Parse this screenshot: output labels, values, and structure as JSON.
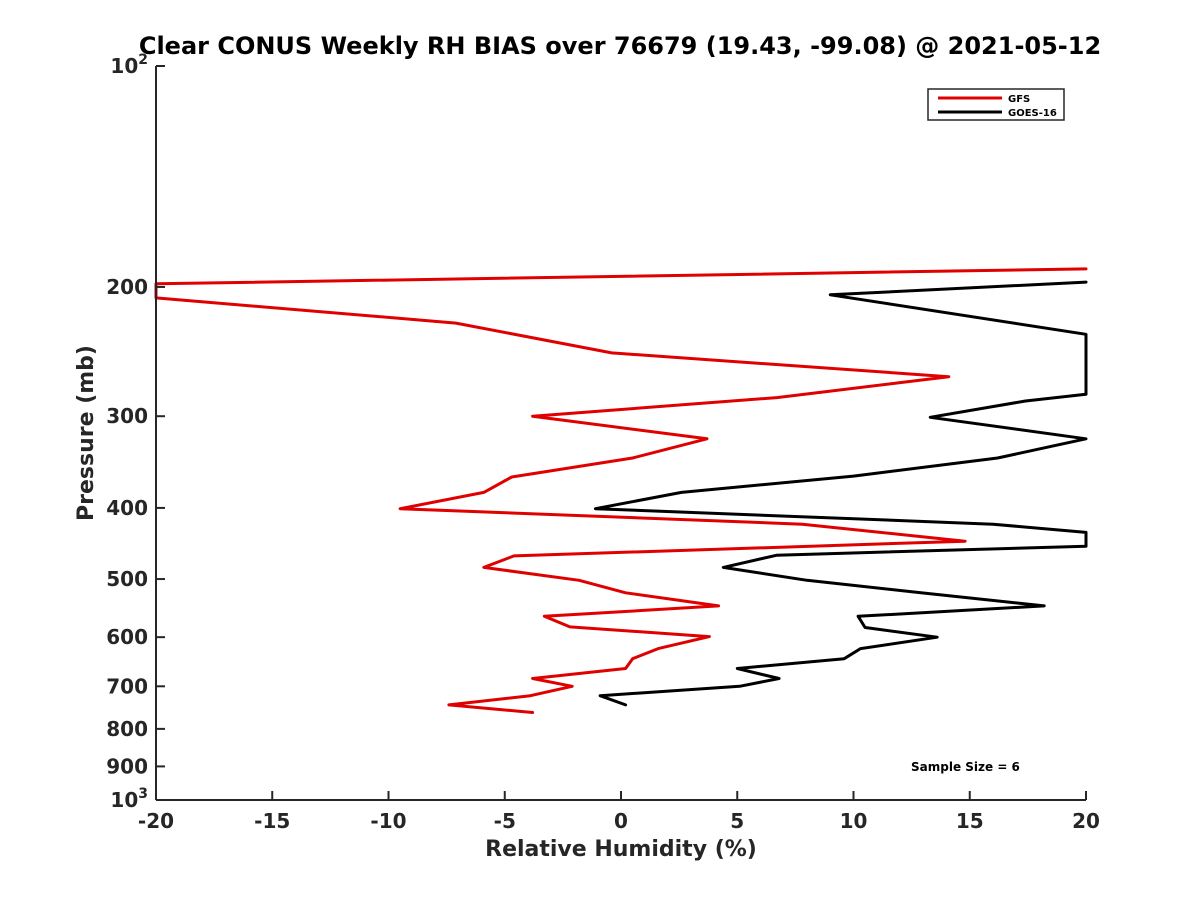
{
  "chart_data": {
    "type": "line",
    "title": "Clear CONUS Weekly RH BIAS over 76679 (19.43, -99.08) @ 2021-05-12",
    "xlabel": "Relative Humidity (%)",
    "ylabel": "Pressure (mb)",
    "xlim": [
      -20,
      20
    ],
    "ylim": [
      100,
      1000
    ],
    "y_scale": "log",
    "y_reversed": true,
    "grid": false,
    "legend_position": "top-right",
    "x_ticks": [
      "-20",
      "-15",
      "-10",
      "-5",
      "0",
      "5",
      "10",
      "15",
      "20"
    ],
    "y_ticks": [
      {
        "value": 100,
        "base": "10",
        "exp": "2"
      },
      {
        "value": 200,
        "label": "200"
      },
      {
        "value": 300,
        "label": "300"
      },
      {
        "value": 400,
        "label": "400"
      },
      {
        "value": 500,
        "label": "500"
      },
      {
        "value": 600,
        "label": "600"
      },
      {
        "value": 700,
        "label": "700"
      },
      {
        "value": 800,
        "label": "800"
      },
      {
        "value": 900,
        "label": "900"
      },
      {
        "value": 1000,
        "base": "10",
        "exp": "3"
      }
    ],
    "annotation": "Sample Size = 6",
    "series": [
      {
        "name": "GFS",
        "color": "#e00000",
        "points": [
          [
            20,
            189
          ],
          [
            -20,
            198
          ],
          [
            -20,
            207
          ],
          [
            -7.1,
            224
          ],
          [
            -0.4,
            246
          ],
          [
            14.1,
            265
          ],
          [
            6.7,
            283
          ],
          [
            -3.8,
            300
          ],
          [
            3.7,
            322
          ],
          [
            0.5,
            342
          ],
          [
            -4.7,
            363
          ],
          [
            -5.9,
            381
          ],
          [
            -9.5,
            401
          ],
          [
            7.8,
            421
          ],
          [
            14.8,
            444
          ],
          [
            -4.6,
            465
          ],
          [
            -5.9,
            482
          ],
          [
            -1.8,
            502
          ],
          [
            0.2,
            522
          ],
          [
            4.2,
            544
          ],
          [
            -3.3,
            562
          ],
          [
            -2.2,
            581
          ],
          [
            3.8,
            599
          ],
          [
            1.6,
            622
          ],
          [
            0.5,
            642
          ],
          [
            0.2,
            662
          ],
          [
            -3.8,
            683
          ],
          [
            -2.1,
            700
          ],
          [
            -3.9,
            721
          ],
          [
            -7.4,
            742
          ],
          [
            -3.8,
            760
          ]
        ]
      },
      {
        "name": "GOES-16",
        "color": "#000000",
        "points": [
          [
            20,
            197
          ],
          [
            9.0,
            205
          ],
          [
            20,
            232
          ],
          [
            20,
            280
          ],
          [
            17.4,
            286
          ],
          [
            13.3,
            301
          ],
          [
            20,
            322
          ],
          [
            16.2,
            342
          ],
          [
            10.0,
            362
          ],
          [
            2.6,
            381
          ],
          [
            -1.1,
            401
          ],
          [
            16.0,
            421
          ],
          [
            20,
            432
          ],
          [
            20,
            451
          ],
          [
            6.7,
            464
          ],
          [
            4.4,
            482
          ],
          [
            8.0,
            502
          ],
          [
            12.9,
            522
          ],
          [
            18.2,
            544
          ],
          [
            10.2,
            562
          ],
          [
            10.5,
            582
          ],
          [
            13.6,
            600
          ],
          [
            10.3,
            622
          ],
          [
            9.6,
            642
          ],
          [
            5.0,
            662
          ],
          [
            6.8,
            683
          ],
          [
            5.1,
            700
          ],
          [
            -0.9,
            721
          ],
          [
            0.2,
            742
          ]
        ]
      }
    ]
  }
}
